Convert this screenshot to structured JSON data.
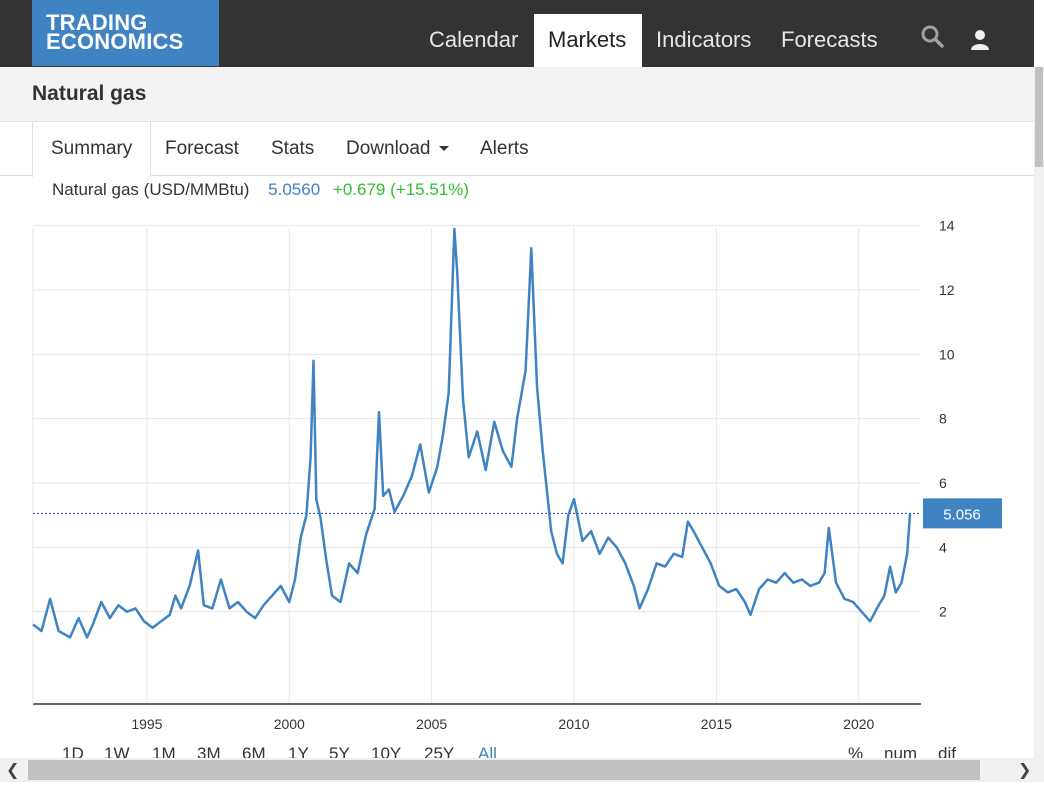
{
  "header": {
    "logo_line1": "TRADING",
    "logo_line2": "ECONOMICS",
    "nav": [
      "Calendar",
      "Markets",
      "Indicators",
      "Forecasts"
    ],
    "active_nav": "Markets"
  },
  "page": {
    "title": "Natural gas"
  },
  "tabs": {
    "items": [
      "Summary",
      "Forecast",
      "Stats",
      "Download",
      "Alerts"
    ],
    "active": "Summary"
  },
  "legend": {
    "label": "Natural gas (USD/MMBtu)",
    "value": "5.0560",
    "change": "+0.679 (+15.51%)"
  },
  "ranges": {
    "items": [
      "1D",
      "1W",
      "1M",
      "3M",
      "6M",
      "1Y",
      "5Y",
      "10Y",
      "25Y",
      "All"
    ],
    "active": "All",
    "right_items": [
      "%",
      "num",
      "dif"
    ]
  },
  "colors": {
    "brand": "#3f83c2",
    "topbar": "#333333",
    "positive": "#2fbf2f",
    "line": "#3f83c2"
  },
  "chart_data": {
    "type": "line",
    "x_ticks": [
      "1995",
      "2000",
      "2005",
      "2010",
      "2015",
      "2020"
    ],
    "y_ticks": [
      "2",
      "4",
      "6",
      "8",
      "10",
      "12",
      "14"
    ],
    "ylim": [
      0,
      14.3
    ],
    "xlim": [
      1991.0,
      2021.8
    ],
    "last_value_label": "5.056",
    "last_value": 5.056,
    "grid": true,
    "series": [
      {
        "x": [
          1991.0,
          1991.3,
          1991.6,
          1991.9,
          1992.1,
          1992.3,
          1992.6,
          1992.9,
          1993.1,
          1993.4,
          1993.7,
          1994.0,
          1994.3,
          1994.6,
          1994.9,
          1995.2,
          1995.5,
          1995.8,
          1996.0,
          1996.2,
          1996.5,
          1996.8,
          1997.0,
          1997.3,
          1997.6,
          1997.9,
          1998.2,
          1998.5,
          1998.8,
          1999.1,
          1999.4,
          1999.7,
          2000.0,
          2000.2,
          2000.4,
          2000.6,
          2000.75,
          2000.85,
          2000.95,
          2001.1,
          2001.3,
          2001.5,
          2001.8,
          2002.1,
          2002.4,
          2002.7,
          2003.0,
          2003.15,
          2003.3,
          2003.5,
          2003.7,
          2004.0,
          2004.3,
          2004.6,
          2004.9,
          2005.2,
          2005.4,
          2005.6,
          2005.8,
          2005.9,
          2006.1,
          2006.3,
          2006.6,
          2006.9,
          2007.2,
          2007.5,
          2007.8,
          2008.0,
          2008.3,
          2008.5,
          2008.7,
          2008.9,
          2009.2,
          2009.4,
          2009.6,
          2009.8,
          2010.0,
          2010.3,
          2010.6,
          2010.9,
          2011.2,
          2011.5,
          2011.8,
          2012.1,
          2012.3,
          2012.6,
          2012.9,
          2013.2,
          2013.5,
          2013.8,
          2014.0,
          2014.2,
          2014.5,
          2014.8,
          2015.1,
          2015.4,
          2015.7,
          2016.0,
          2016.2,
          2016.5,
          2016.8,
          2017.1,
          2017.4,
          2017.7,
          2018.0,
          2018.3,
          2018.6,
          2018.8,
          2018.95,
          2019.2,
          2019.5,
          2019.8,
          2020.1,
          2020.4,
          2020.7,
          2020.9,
          2021.1,
          2021.3,
          2021.5,
          2021.7,
          2021.8
        ],
        "y": [
          1.6,
          1.4,
          2.4,
          1.4,
          1.3,
          1.2,
          1.8,
          1.2,
          1.6,
          2.3,
          1.8,
          2.2,
          2.0,
          2.1,
          1.7,
          1.5,
          1.7,
          1.9,
          2.5,
          2.1,
          2.8,
          3.9,
          2.2,
          2.1,
          3.0,
          2.1,
          2.3,
          2.0,
          1.8,
          2.2,
          2.5,
          2.8,
          2.3,
          3.0,
          4.3,
          5.0,
          6.8,
          9.8,
          5.5,
          4.9,
          3.6,
          2.5,
          2.3,
          3.5,
          3.2,
          4.4,
          5.2,
          8.2,
          5.6,
          5.8,
          5.1,
          5.6,
          6.2,
          7.2,
          5.7,
          6.5,
          7.5,
          8.8,
          13.9,
          12.5,
          8.6,
          6.8,
          7.6,
          6.4,
          7.9,
          7.0,
          6.5,
          8.0,
          9.5,
          13.3,
          9.0,
          7.0,
          4.5,
          3.8,
          3.5,
          5.0,
          5.5,
          4.2,
          4.5,
          3.8,
          4.3,
          4.0,
          3.5,
          2.8,
          2.1,
          2.7,
          3.5,
          3.4,
          3.8,
          3.7,
          4.8,
          4.5,
          4.0,
          3.5,
          2.8,
          2.6,
          2.7,
          2.3,
          1.9,
          2.7,
          3.0,
          2.9,
          3.2,
          2.9,
          3.0,
          2.8,
          2.9,
          3.2,
          4.6,
          2.9,
          2.4,
          2.3,
          2.0,
          1.7,
          2.2,
          2.5,
          3.4,
          2.6,
          2.9,
          3.8,
          5.056
        ]
      }
    ]
  }
}
